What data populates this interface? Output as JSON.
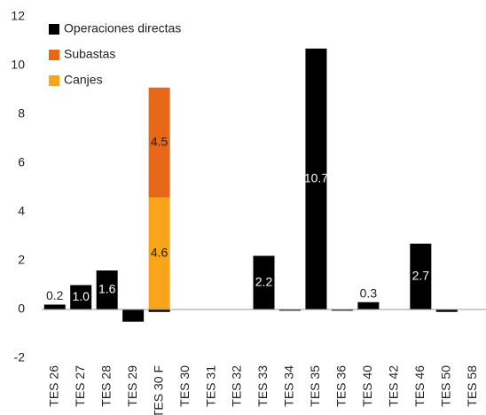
{
  "chart_data": {
    "type": "bar",
    "stacked": true,
    "categories": [
      "TES 26",
      "TES 27",
      "TES 28",
      "TES 29",
      "TES 30 F",
      "TES 30",
      "TES 31",
      "TES 32",
      "TES 33",
      "TES 34",
      "TES 35",
      "TES 36",
      "TES 40",
      "TES 42",
      "TES 46",
      "TES 50",
      "TES 58"
    ],
    "series": [
      {
        "name": "Operaciones directas",
        "color": "#000000",
        "values": [
          0.2,
          1.0,
          1.6,
          -0.5,
          -0.1,
          0,
          0,
          0,
          2.2,
          -0.05,
          10.7,
          -0.05,
          0.3,
          0,
          2.7,
          -0.1,
          0
        ],
        "value_labels": [
          "0.2",
          "1.0",
          "1.6",
          null,
          null,
          null,
          null,
          null,
          "2.2",
          null,
          "10.7",
          null,
          "0.3",
          null,
          "2.7",
          null,
          null
        ]
      },
      {
        "name": "Subastas",
        "color": "#e8681a",
        "values": [
          0,
          0,
          0,
          0,
          4.5,
          0,
          0,
          0,
          0,
          0,
          0,
          0,
          0,
          0,
          0,
          0,
          0
        ],
        "value_labels": [
          null,
          null,
          null,
          null,
          "4.5",
          null,
          null,
          null,
          null,
          null,
          null,
          null,
          null,
          null,
          null,
          null,
          null
        ]
      },
      {
        "name": "Canjes",
        "color": "#f8a51b",
        "values": [
          0,
          0,
          0,
          0,
          4.6,
          0,
          0,
          0,
          0,
          0,
          0,
          0,
          0,
          0,
          0,
          0,
          0
        ],
        "value_labels": [
          null,
          null,
          null,
          null,
          "4.6",
          null,
          null,
          null,
          null,
          null,
          null,
          null,
          null,
          null,
          null,
          null,
          null
        ]
      }
    ],
    "stack_order": [
      "Canjes",
      "Subastas",
      "Operaciones directas"
    ],
    "ylim": [
      -2,
      12
    ],
    "yticks": [
      -2,
      0,
      2,
      4,
      6,
      8,
      10,
      12
    ],
    "grid": false,
    "legend": "top-left"
  }
}
